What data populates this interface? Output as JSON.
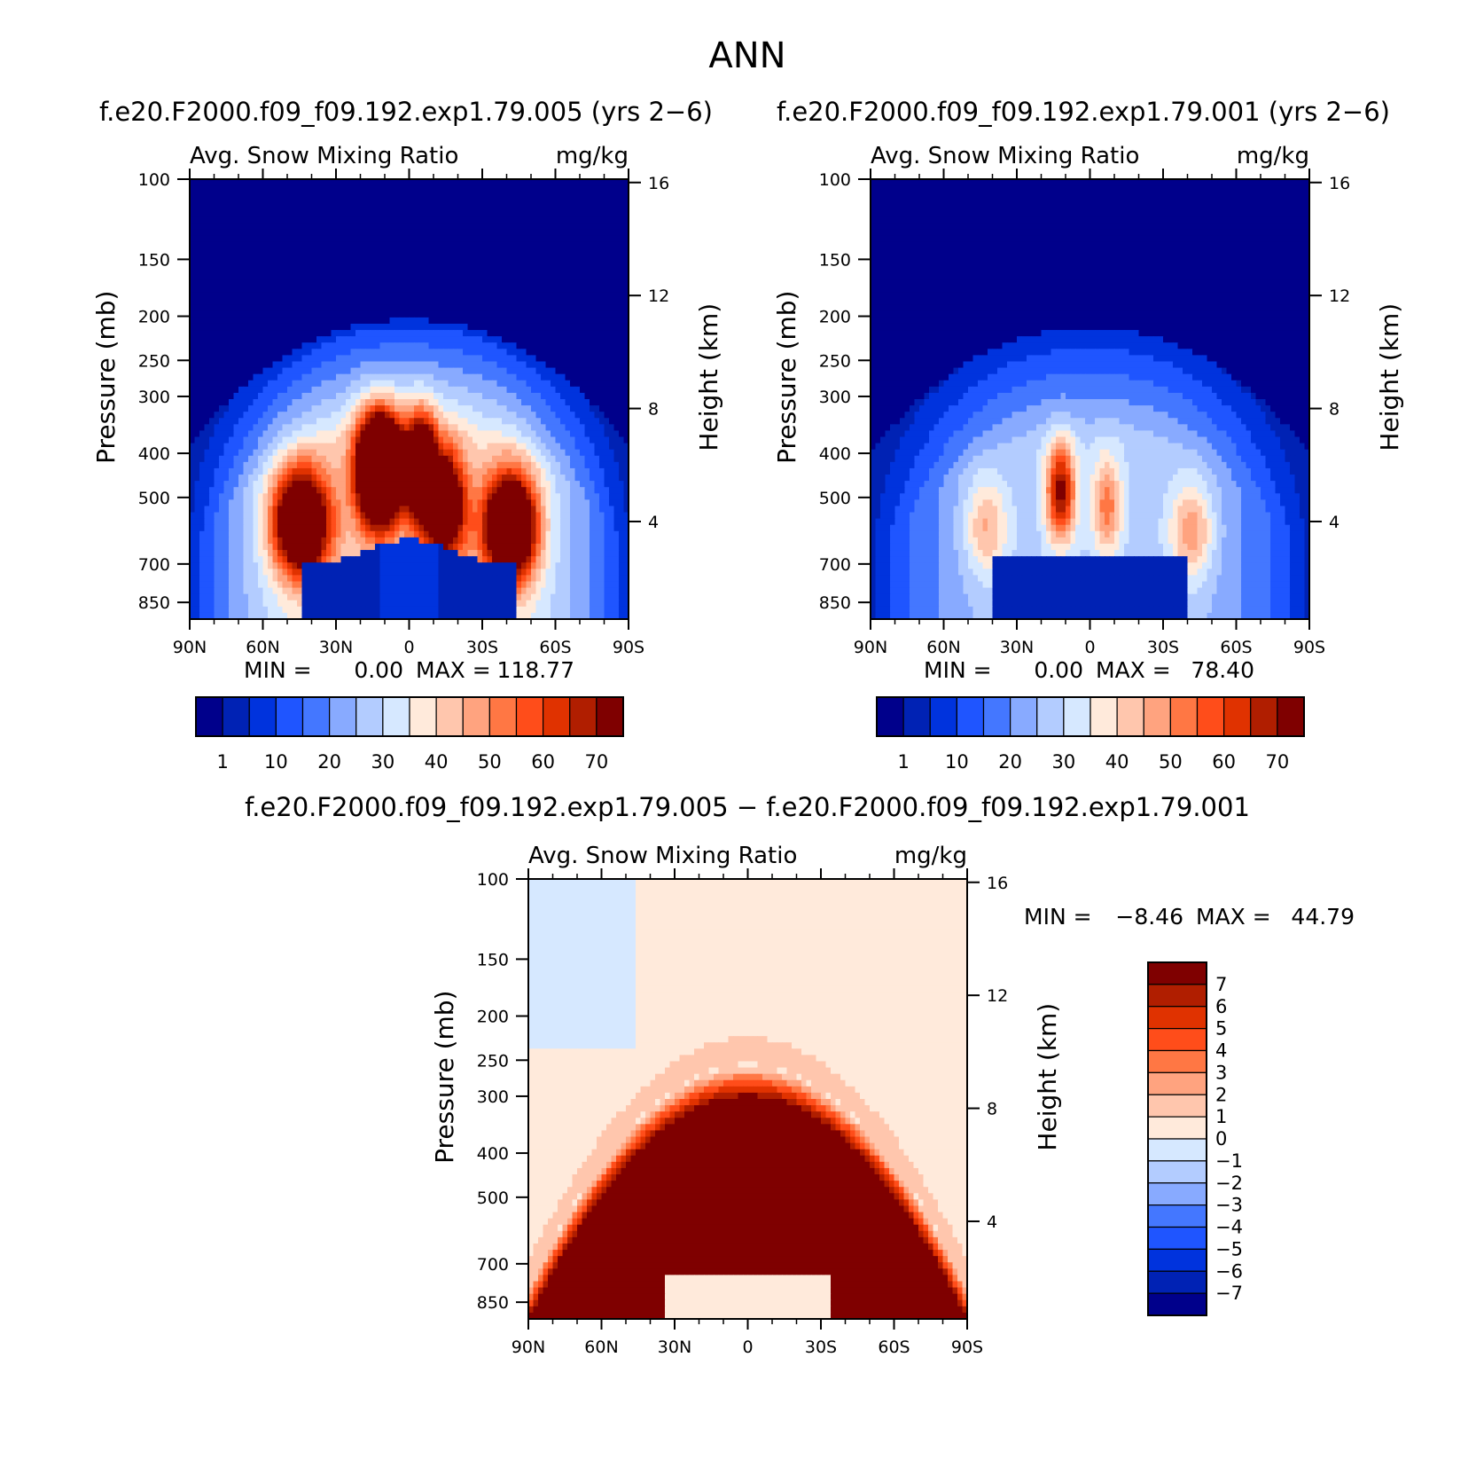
{
  "page_title": "ANN",
  "left_title": "f.e20.F2000.f09_f09.192.exp1.79.005 (yrs 2−6)",
  "right_title": "f.e20.F2000.f09_f09.192.exp1.79.001 (yrs 2−6)",
  "diff_title": "f.e20.F2000.f09_f09.192.exp1.79.005 − f.e20.F2000.f09_f09.192.exp1.79.001",
  "chart_data": [
    {
      "type": "heatmap",
      "panel": "left",
      "variable_label": "Avg. Snow Mixing Ratio",
      "units": "mg/kg",
      "ylabel": "Pressure (mb)",
      "ylabel_right": "Height (km)",
      "x_ticks": [
        "90N",
        "60N",
        "30N",
        "0",
        "30S",
        "60S",
        "90S"
      ],
      "y_ticks": [
        100,
        150,
        200,
        250,
        300,
        400,
        500,
        700,
        850
      ],
      "y_right_ticks": [
        16,
        12,
        8,
        4
      ],
      "stats": {
        "min_label": "MIN =",
        "min": "0.00",
        "max_label": "MAX =",
        "max": "118.77"
      },
      "colorbar_labels": [
        "1",
        "10",
        "20",
        "30",
        "40",
        "50",
        "60",
        "70"
      ],
      "colors": [
        "#00008b",
        "#0022b4",
        "#0033dd",
        "#1f55ff",
        "#4477ff",
        "#88aaff",
        "#b3ccff",
        "#d6e8ff",
        "#ffeadb",
        "#ffc6ad",
        "#ffa37f",
        "#ff7744",
        "#ff4d1a",
        "#e03200",
        "#b01e00",
        "#7f0000"
      ]
    },
    {
      "type": "heatmap",
      "panel": "right",
      "variable_label": "Avg. Snow Mixing Ratio",
      "units": "mg/kg",
      "ylabel": "Pressure (mb)",
      "ylabel_right": "Height (km)",
      "x_ticks": [
        "90N",
        "60N",
        "30N",
        "0",
        "30S",
        "60S",
        "90S"
      ],
      "y_ticks": [
        100,
        150,
        200,
        250,
        300,
        400,
        500,
        700,
        850
      ],
      "y_right_ticks": [
        16,
        12,
        8,
        4
      ],
      "stats": {
        "min_label": "MIN =",
        "min": "0.00",
        "max_label": "MAX =",
        "max": "78.40"
      },
      "colorbar_labels": [
        "1",
        "10",
        "20",
        "30",
        "40",
        "50",
        "60",
        "70"
      ],
      "colors": [
        "#00008b",
        "#0022b4",
        "#0033dd",
        "#1f55ff",
        "#4477ff",
        "#88aaff",
        "#b3ccff",
        "#d6e8ff",
        "#ffeadb",
        "#ffc6ad",
        "#ffa37f",
        "#ff7744",
        "#ff4d1a",
        "#e03200",
        "#b01e00",
        "#7f0000"
      ]
    },
    {
      "type": "heatmap",
      "panel": "difference",
      "variable_label": "Avg. Snow Mixing Ratio",
      "units": "mg/kg",
      "ylabel": "Pressure (mb)",
      "ylabel_right": "Height (km)",
      "x_ticks": [
        "90N",
        "60N",
        "30N",
        "0",
        "30S",
        "60S",
        "90S"
      ],
      "y_ticks": [
        100,
        150,
        200,
        250,
        300,
        400,
        500,
        700,
        850
      ],
      "y_right_ticks": [
        16,
        12,
        8,
        4
      ],
      "stats": {
        "min_label": "MIN =",
        "min": "−8.46",
        "max_label": "MAX =",
        "max": "44.79"
      },
      "colorbar_labels": [
        "7",
        "6",
        "5",
        "4",
        "3",
        "2",
        "1",
        "0",
        "−1",
        "−2",
        "−3",
        "−4",
        "−5",
        "−6",
        "−7"
      ],
      "colors": [
        "#7f0000",
        "#b01e00",
        "#e03200",
        "#ff4d1a",
        "#ff7744",
        "#ffa37f",
        "#ffc6ad",
        "#ffeadb",
        "#d6e8ff",
        "#b3ccff",
        "#88aaff",
        "#4477ff",
        "#1f55ff",
        "#0033dd",
        "#0022b4",
        "#00008b"
      ]
    }
  ]
}
